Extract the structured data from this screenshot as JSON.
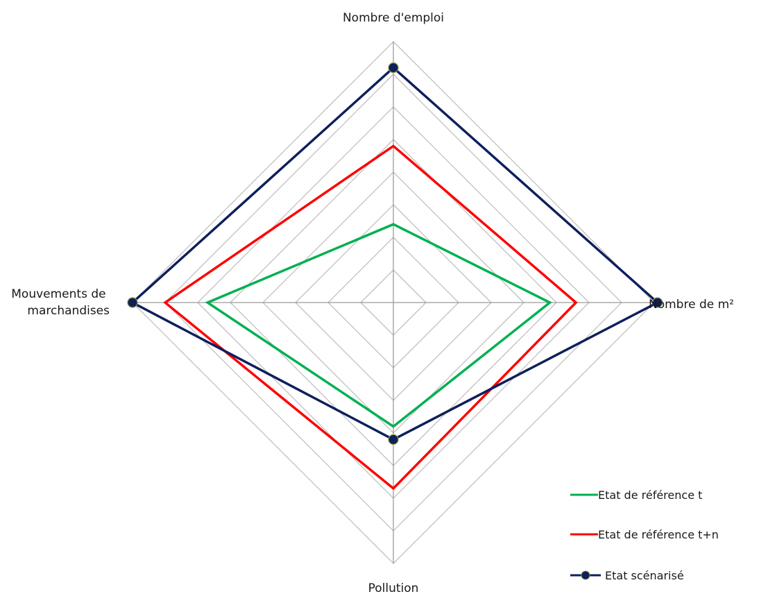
{
  "chart_data": {
    "type": "radar",
    "axes": [
      "Nombre d'emploi",
      "Nombre de m²",
      "Pollution",
      "Mouvements de marchandises"
    ],
    "axis_label_lines": {
      "top": [
        "Nombre d'emploi"
      ],
      "right": [
        "Nombre de m²"
      ],
      "bottom": [
        "Pollution"
      ],
      "left": [
        "Mouvements de",
        "marchandises"
      ]
    },
    "scale": {
      "min": 0,
      "max": 8,
      "rings": 8
    },
    "grid": true,
    "legend_position": "bottom-right",
    "series": [
      {
        "name": "Etat de référence t",
        "color": "#00b050",
        "marker": false,
        "values": [
          2.4,
          4.8,
          3.8,
          5.7
        ]
      },
      {
        "name": "Etat de référence t+n",
        "color": "#ff0000",
        "marker": false,
        "values": [
          4.8,
          5.6,
          5.7,
          7.0
        ]
      },
      {
        "name": "Etat scénarisé",
        "color": "#0d1f5c",
        "marker": true,
        "values": [
          7.2,
          8.1,
          4.2,
          8.0
        ]
      }
    ]
  }
}
